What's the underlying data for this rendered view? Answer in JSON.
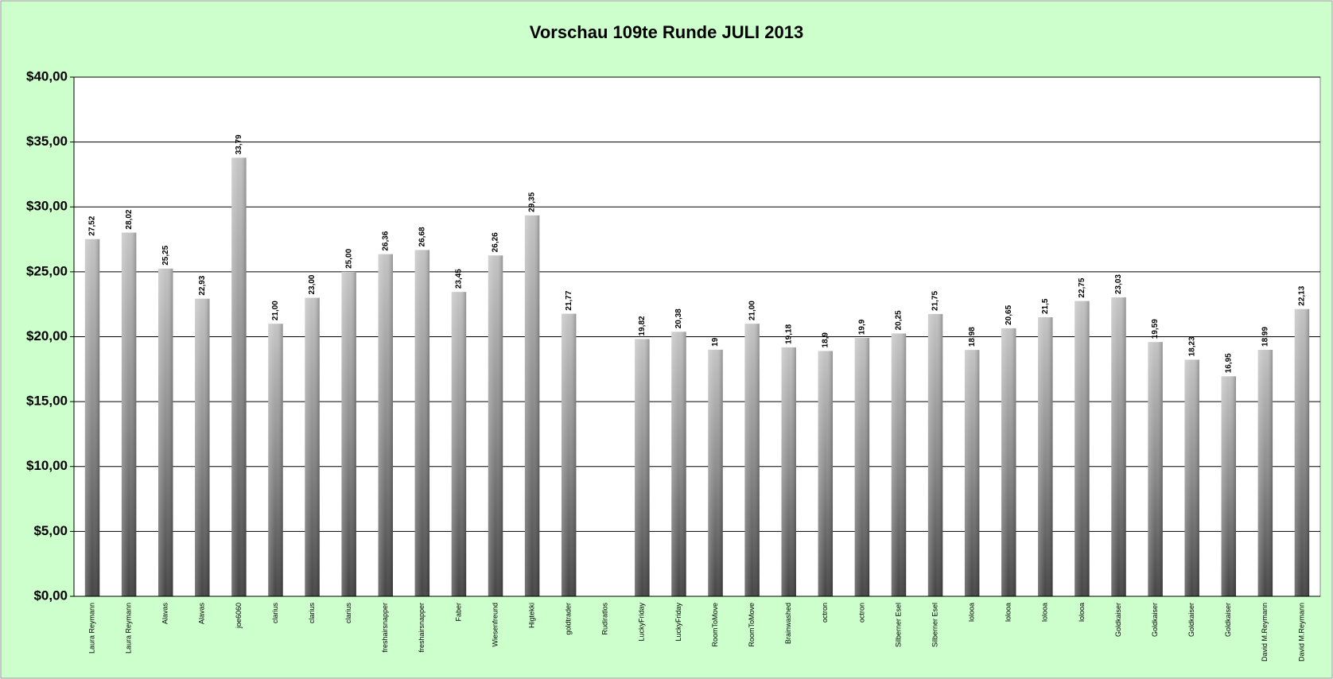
{
  "chart_data": {
    "type": "bar",
    "title": "Vorschau 109te Runde JULI 2013",
    "categories": [
      "Laura Reymann",
      "Laura Reymann",
      "Alavas",
      "Alavas",
      "joe6060",
      "clarius",
      "clarius",
      "clarius",
      "freshairsnapper",
      "freshairsnapper",
      "Faber",
      "Wiesenfreund",
      "Higtekki",
      "goldtrader",
      "Rudiratlos",
      "LuckyFriday",
      "LuckyFriday",
      "RoomToMove",
      "RoomToMove",
      "Brainwashed",
      "octron",
      "octron",
      "Silberner Esel",
      "Silberner Esel",
      "lolooa",
      "lolooa",
      "lolooa",
      "lolooa",
      "Goldkaiser",
      "Goldkaiser",
      "Goldkaiser",
      "Goldkaiser",
      "David M.Reymann",
      "David M.Reymann"
    ],
    "values": [
      27.52,
      28.02,
      25.25,
      22.93,
      33.79,
      21.0,
      23.0,
      25.0,
      26.36,
      26.68,
      23.45,
      26.26,
      29.35,
      21.77,
      null,
      19.82,
      20.38,
      19,
      21.0,
      19.18,
      18.9,
      19.9,
      20.25,
      21.75,
      18.98,
      20.65,
      21.5,
      22.75,
      23.03,
      19.59,
      18.23,
      16.95,
      18.99,
      22.13
    ],
    "value_labels": [
      "27,52",
      "28,02",
      "25,25",
      "22,93",
      "33,79",
      "21,00",
      "23,00",
      "25,00",
      "26,36",
      "26,68",
      "23,45",
      "26,26",
      "29,35",
      "21,77",
      null,
      "19,82",
      "20,38",
      "19",
      "21,00",
      "19,18",
      "18,9",
      "19,9",
      "20,25",
      "21,75",
      "18,98",
      "20,65",
      "21,5",
      "22,75",
      "23,03",
      "19,59",
      "18,23",
      "16,95",
      "18,99",
      "22,13"
    ],
    "ylim": [
      0,
      40
    ],
    "yticks": [
      {
        "value": 0,
        "label": "$0,00"
      },
      {
        "value": 5,
        "label": "$5,00"
      },
      {
        "value": 10,
        "label": "$10,00"
      },
      {
        "value": 15,
        "label": "$15,00"
      },
      {
        "value": 20,
        "label": "$20,00"
      },
      {
        "value": 25,
        "label": "$25,00"
      },
      {
        "value": 30,
        "label": "$30,00"
      },
      {
        "value": 35,
        "label": "$35,00"
      },
      {
        "value": 40,
        "label": "$40,00"
      }
    ],
    "grid": true
  }
}
